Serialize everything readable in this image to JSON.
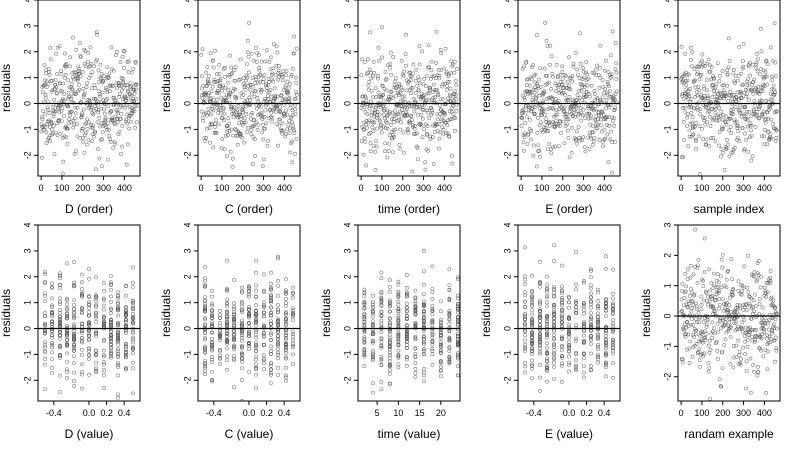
{
  "chart_data": [
    {
      "type": "scatter",
      "xlabel": "D (order)",
      "ylabel": "residuals",
      "xticks": [
        0,
        100,
        200,
        300,
        400
      ],
      "xlim": [
        -15,
        475
      ],
      "yticks": [
        -2,
        -1,
        0,
        1,
        2,
        3,
        4
      ],
      "ylim": [
        -2.8,
        4.0
      ],
      "ref_line_y": 0,
      "n_points": 460,
      "x_mode": "order",
      "x_range": [
        1,
        460
      ],
      "seed": 11
    },
    {
      "type": "scatter",
      "xlabel": "C (order)",
      "ylabel": "residuals",
      "xticks": [
        0,
        100,
        200,
        300,
        400
      ],
      "xlim": [
        -15,
        475
      ],
      "yticks": [
        -2,
        -1,
        0,
        1,
        2,
        3,
        4
      ],
      "ylim": [
        -2.8,
        4.0
      ],
      "ref_line_y": 0,
      "n_points": 460,
      "x_mode": "order",
      "x_range": [
        1,
        460
      ],
      "seed": 23
    },
    {
      "type": "scatter",
      "xlabel": "time (order)",
      "ylabel": "residuals",
      "xticks": [
        0,
        100,
        200,
        300,
        400
      ],
      "xlim": [
        -15,
        475
      ],
      "yticks": [
        -2,
        -1,
        0,
        1,
        2,
        3,
        4
      ],
      "ylim": [
        -2.8,
        4.0
      ],
      "ref_line_y": 0,
      "n_points": 460,
      "x_mode": "order",
      "x_range": [
        1,
        460
      ],
      "seed": 37
    },
    {
      "type": "scatter",
      "xlabel": "E (order)",
      "ylabel": "residuals",
      "xticks": [
        0,
        100,
        200,
        300,
        400
      ],
      "xlim": [
        -15,
        475
      ],
      "yticks": [
        -2,
        -1,
        0,
        1,
        2,
        3,
        4
      ],
      "ylim": [
        -2.8,
        4.0
      ],
      "ref_line_y": 0,
      "n_points": 460,
      "x_mode": "order",
      "x_range": [
        1,
        460
      ],
      "seed": 41
    },
    {
      "type": "scatter",
      "xlabel": "sample index",
      "ylabel": "residuals",
      "xticks": [
        0,
        100,
        200,
        300,
        400
      ],
      "xlim": [
        -15,
        475
      ],
      "yticks": [
        -2,
        -1,
        0,
        1,
        2,
        3,
        4
      ],
      "ylim": [
        -2.8,
        4.0
      ],
      "ref_line_y": 0,
      "n_points": 460,
      "x_mode": "order",
      "x_range": [
        1,
        460
      ],
      "seed": 53
    },
    {
      "type": "scatter",
      "xlabel": "D (value)",
      "ylabel": "residuals",
      "xticks": [
        -0.4,
        0.0,
        0.2,
        0.4
      ],
      "xtick_labels": [
        "-0.4",
        "0.0",
        "0.2",
        "0.4"
      ],
      "xlim": [
        -0.58,
        0.58
      ],
      "yticks": [
        -2,
        -1,
        0,
        1,
        2,
        3,
        4
      ],
      "ylim": [
        -2.8,
        4.0
      ],
      "ref_line_y": 0,
      "n_points": 460,
      "x_mode": "discrete",
      "x_levels": [
        -0.5,
        -0.42,
        -0.33,
        -0.25,
        -0.17,
        -0.08,
        0.0,
        0.08,
        0.17,
        0.25,
        0.33,
        0.42,
        0.5
      ],
      "seed": 61
    },
    {
      "type": "scatter",
      "xlabel": "C (value)",
      "ylabel": "residuals",
      "xticks": [
        -0.4,
        0.0,
        0.2,
        0.4
      ],
      "xtick_labels": [
        "-0.4",
        "0.0",
        "0.2",
        "0.4"
      ],
      "xlim": [
        -0.58,
        0.58
      ],
      "yticks": [
        -2,
        -1,
        0,
        1,
        2,
        3,
        4
      ],
      "ylim": [
        -2.8,
        4.0
      ],
      "ref_line_y": 0,
      "n_points": 460,
      "x_mode": "discrete",
      "x_levels": [
        -0.5,
        -0.42,
        -0.33,
        -0.25,
        -0.17,
        -0.08,
        0.0,
        0.08,
        0.17,
        0.25,
        0.33,
        0.42,
        0.5
      ],
      "seed": 71
    },
    {
      "type": "scatter",
      "xlabel": "time (value)",
      "ylabel": "residuals",
      "xticks": [
        5,
        10,
        15,
        20
      ],
      "xtick_labels": [
        "5",
        "10",
        "15",
        "20"
      ],
      "xlim": [
        0.5,
        24.5
      ],
      "yticks": [
        -2,
        -1,
        0,
        1,
        2,
        3,
        4
      ],
      "ylim": [
        -2.8,
        4.0
      ],
      "ref_line_y": 0,
      "n_points": 460,
      "x_mode": "discrete",
      "x_levels": [
        2,
        4,
        6,
        8,
        10,
        12,
        14,
        16,
        18,
        20,
        22,
        24
      ],
      "seed": 83
    },
    {
      "type": "scatter",
      "xlabel": "E (value)",
      "ylabel": "residuals",
      "xticks": [
        -0.4,
        0.0,
        0.2,
        0.4
      ],
      "xtick_labels": [
        "-0.4",
        "0.0",
        "0.2",
        "0.4"
      ],
      "xlim": [
        -0.58,
        0.58
      ],
      "yticks": [
        -2,
        -1,
        0,
        1,
        2,
        3,
        4
      ],
      "ylim": [
        -2.8,
        4.0
      ],
      "ref_line_y": 0,
      "n_points": 460,
      "x_mode": "discrete",
      "x_levels": [
        -0.5,
        -0.42,
        -0.33,
        -0.25,
        -0.17,
        -0.08,
        0.0,
        0.08,
        0.17,
        0.25,
        0.33,
        0.42,
        0.5
      ],
      "seed": 97
    },
    {
      "type": "scatter",
      "xlabel": "randam example",
      "ylabel": "residuals",
      "xticks": [
        0,
        100,
        200,
        300,
        400
      ],
      "xlim": [
        -15,
        475
      ],
      "yticks": [
        -2,
        -1,
        0,
        1,
        2,
        3
      ],
      "ylim": [
        -2.8,
        3.0
      ],
      "ref_line_y": 0,
      "n_points": 460,
      "x_mode": "order",
      "x_range": [
        1,
        460
      ],
      "seed": 109
    }
  ]
}
